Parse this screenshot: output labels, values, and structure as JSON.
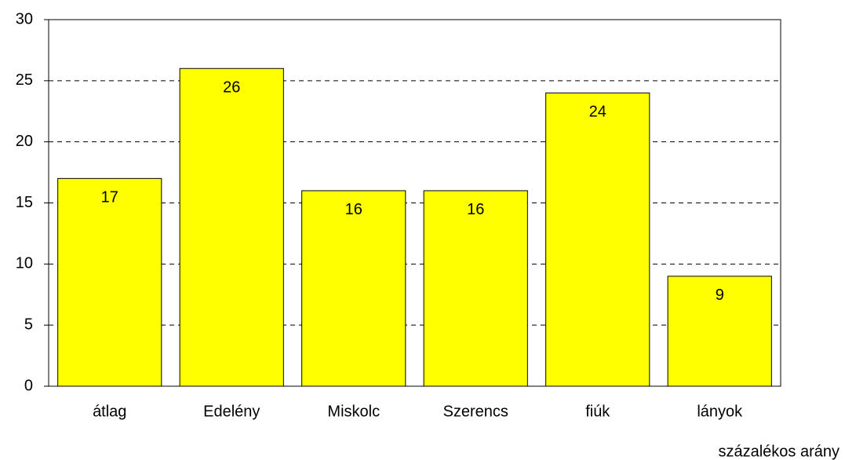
{
  "chart_data": {
    "type": "bar",
    "x_label": "százalékos arány",
    "categories": [
      "átlag",
      "Edelény",
      "Miskolc",
      "Szerencs",
      "fiúk",
      "lányok"
    ],
    "values": [
      17,
      26,
      16,
      16,
      24,
      9
    ],
    "color": "#ffff00",
    "ylim": [
      0,
      30
    ],
    "yticks": [
      0,
      5,
      10,
      15,
      20,
      25,
      30
    ],
    "grid": true
  }
}
